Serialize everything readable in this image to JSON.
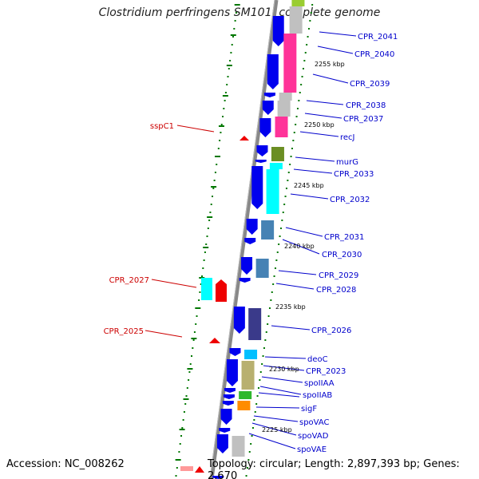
{
  "title": "Clostridium perfringens SM101, complete genome",
  "accession": "Accession: NC_008262",
  "summary": "Topology: circular; Length: 2,897,393 bp; Genes: 2,670",
  "colors": {
    "label_forward": "#0000cc",
    "label_reverse": "#cc0000",
    "backbone": "#888888",
    "tick": "#007700"
  },
  "kbp_marks": [
    {
      "text": "2255 kbp"
    },
    {
      "text": "2250 kbp"
    },
    {
      "text": "2245 kbp"
    },
    {
      "text": "2240 kbp"
    },
    {
      "text": "2235 kbp"
    },
    {
      "text": "2230 kbp"
    },
    {
      "text": "2225 kbp"
    }
  ],
  "right_labels": [
    {
      "text": "CPR_2041",
      "cog_color": "#c0c0c0"
    },
    {
      "text": "CPR_2040",
      "cog_color": "#ff3399"
    },
    {
      "text": "CPR_2039",
      "cog_color": "#ff3399"
    },
    {
      "text": "CPR_2038",
      "cog_color": "#c0c0c0"
    },
    {
      "text": "CPR_2037",
      "cog_color": "#ff3399"
    },
    {
      "text": "recJ",
      "cog_color": "#ff3399"
    },
    {
      "text": "murG",
      "cog_color": "#6b8e23"
    },
    {
      "text": "CPR_2033",
      "cog_color": "#00ffff"
    },
    {
      "text": "CPR_2032",
      "cog_color": "#00ffff"
    },
    {
      "text": "CPR_2031",
      "cog_color": "#4682b4"
    },
    {
      "text": "CPR_2030",
      "cog_color": "#4682b4"
    },
    {
      "text": "CPR_2029",
      "cog_color": "#4682b4"
    },
    {
      "text": "CPR_2028",
      "cog_color": "#4682b4"
    },
    {
      "text": "CPR_2026",
      "cog_color": "#3a3a8a"
    },
    {
      "text": "deoC",
      "cog_color": "#00bfff"
    },
    {
      "text": "CPR_2023",
      "cog_color": "#b8b070"
    },
    {
      "text": "spoIIAA",
      "cog_color": "#b8b070"
    },
    {
      "text": "spoIIAB",
      "cog_color": "#2eb82e"
    },
    {
      "text": "sigF",
      "cog_color": "#ff8c00"
    },
    {
      "text": "spoVAC",
      "cog_color": "#c0c0c0"
    },
    {
      "text": "spoVAD",
      "cog_color": "#c0c0c0"
    },
    {
      "text": "spoVAE",
      "cog_color": "#c0c0c0"
    }
  ],
  "left_labels": [
    {
      "text": "sspC1"
    },
    {
      "text": "CPR_2027"
    },
    {
      "text": "CPR_2025"
    }
  ]
}
